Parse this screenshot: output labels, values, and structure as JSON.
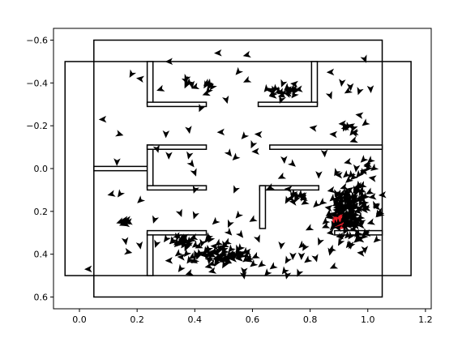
{
  "chart_data": {
    "type": "scatter",
    "title": "",
    "xlabel": "",
    "ylabel": "",
    "xlim": [
      -0.09,
      1.22
    ],
    "ylim": [
      0.655,
      -0.655
    ],
    "y_inverted": true,
    "grid": false,
    "x_ticks": [
      0.0,
      0.2,
      0.4,
      0.6,
      0.8,
      1.0,
      1.2
    ],
    "x_tick_labels": [
      "0.0",
      "0.2",
      "0.4",
      "0.6",
      "0.8",
      "1.0",
      "1.2"
    ],
    "y_ticks": [
      -0.6,
      -0.4,
      -0.2,
      0.0,
      0.2,
      0.4,
      0.6
    ],
    "y_tick_labels": [
      "−0.6",
      "−0.4",
      "−0.2",
      "0.0",
      "0.2",
      "0.4",
      "0.6"
    ],
    "colors": {
      "walls": "#000000",
      "arrows": "#000000",
      "marker": "#e8202a"
    },
    "rectangles": [
      {
        "name": "outer-boundary-tall",
        "x0": 0.05,
        "x1": 1.05,
        "y0": -0.6,
        "y1": 0.6
      },
      {
        "name": "outer-boundary-wide",
        "x0": -0.05,
        "x1": 1.15,
        "y0": -0.5,
        "y1": 0.5
      }
    ],
    "wall_segments": [
      {
        "name": "wall-top-left-vertical",
        "x0": 0.235,
        "x1": 0.255,
        "y0": -0.5,
        "y1": -0.3
      },
      {
        "name": "wall-top-left-horizontal",
        "x0": 0.235,
        "x1": 0.44,
        "y0": -0.31,
        "y1": -0.29
      },
      {
        "name": "wall-top-right-vertical",
        "x0": 0.805,
        "x1": 0.825,
        "y0": -0.5,
        "y1": -0.3
      },
      {
        "name": "wall-top-right-horizontal",
        "x0": 0.62,
        "x1": 0.825,
        "y0": -0.31,
        "y1": -0.29
      },
      {
        "name": "wall-left-stub",
        "x0": 0.05,
        "x1": 0.24,
        "y0": -0.01,
        "y1": 0.01
      },
      {
        "name": "wall-mid-left-vertical",
        "x0": 0.235,
        "x1": 0.255,
        "y0": -0.11,
        "y1": 0.09
      },
      {
        "name": "wall-mid-left-top",
        "x0": 0.235,
        "x1": 0.44,
        "y0": -0.11,
        "y1": -0.09
      },
      {
        "name": "wall-mid-left-bottom",
        "x0": 0.235,
        "x1": 0.44,
        "y0": 0.08,
        "y1": 0.1
      },
      {
        "name": "wall-mid-right-long",
        "x0": 0.66,
        "x1": 1.05,
        "y0": -0.11,
        "y1": -0.09
      },
      {
        "name": "wall-center-horizontal",
        "x0": 0.625,
        "x1": 0.83,
        "y0": 0.08,
        "y1": 0.1
      },
      {
        "name": "wall-center-vertical",
        "x0": 0.625,
        "x1": 0.645,
        "y0": 0.08,
        "y1": 0.28
      },
      {
        "name": "wall-bottom-left-vertical",
        "x0": 0.235,
        "x1": 0.255,
        "y0": 0.3,
        "y1": 0.5
      },
      {
        "name": "wall-bottom-left-horizontal",
        "x0": 0.235,
        "x1": 0.44,
        "y0": 0.29,
        "y1": 0.31
      },
      {
        "name": "wall-bottom-right-horizontal",
        "x0": 0.885,
        "x1": 1.05,
        "y0": 0.29,
        "y1": 0.31
      }
    ],
    "marker": {
      "x": 0.905,
      "y": 0.245,
      "r": 0.028
    },
    "arrows": [
      [
        0.99,
        -0.51,
        1.2
      ],
      [
        0.48,
        -0.54,
        3.1
      ],
      [
        0.58,
        -0.53,
        2.9
      ],
      [
        0.31,
        -0.5,
        3.1
      ],
      [
        0.87,
        -0.45,
        3.1
      ],
      [
        0.18,
        -0.44,
        2.1
      ],
      [
        0.21,
        -0.42,
        3.3
      ],
      [
        0.28,
        -0.37,
        2.8
      ],
      [
        0.37,
        -0.41,
        1.2
      ],
      [
        0.55,
        -0.45,
        2.3
      ],
      [
        0.58,
        -0.41,
        2.7
      ],
      [
        0.72,
        -0.35,
        3.4
      ],
      [
        0.67,
        -0.34,
        3.0
      ],
      [
        0.76,
        -0.37,
        3.0
      ],
      [
        0.46,
        -0.38,
        2.2
      ],
      [
        0.51,
        -0.32,
        1.3
      ],
      [
        0.87,
        -0.34,
        1.2
      ],
      [
        0.91,
        -0.4,
        1.7
      ],
      [
        0.94,
        -0.38,
        1.5
      ],
      [
        0.97,
        -0.36,
        1.9
      ],
      [
        0.93,
        -0.36,
        2.6
      ],
      [
        1.01,
        -0.37,
        1.5
      ],
      [
        0.97,
        -0.25,
        3.3
      ],
      [
        0.94,
        -0.2,
        3.4
      ],
      [
        0.88,
        -0.16,
        3.2
      ],
      [
        0.92,
        -0.19,
        2.9
      ],
      [
        0.99,
        -0.21,
        2.5
      ],
      [
        0.95,
        -0.13,
        2.8
      ],
      [
        0.08,
        -0.23,
        3.1
      ],
      [
        0.14,
        -0.16,
        0.3
      ],
      [
        0.3,
        -0.16,
        1.6
      ],
      [
        0.42,
        -0.28,
        2.0
      ],
      [
        0.38,
        -0.18,
        1.4
      ],
      [
        0.49,
        -0.17,
        3.1
      ],
      [
        0.57,
        -0.15,
        2.3
      ],
      [
        0.62,
        -0.16,
        3.2
      ],
      [
        0.6,
        -0.11,
        2.0
      ],
      [
        0.81,
        -0.19,
        3.3
      ],
      [
        0.27,
        -0.09,
        1.3
      ],
      [
        0.31,
        -0.06,
        1.6
      ],
      [
        0.38,
        -0.06,
        1.8
      ],
      [
        0.39,
        -0.02,
        0.9
      ],
      [
        0.4,
        0.02,
        1.2
      ],
      [
        0.52,
        -0.07,
        0.9
      ],
      [
        0.54,
        -0.05,
        2.4
      ],
      [
        0.61,
        -0.08,
        3.1
      ],
      [
        0.71,
        -0.04,
        1.5
      ],
      [
        0.74,
        -0.02,
        0.7
      ],
      [
        0.85,
        -0.07,
        1.5
      ],
      [
        0.93,
        -0.03,
        2.9
      ],
      [
        0.89,
        0.02,
        2.1
      ],
      [
        0.83,
        0.03,
        1.6
      ],
      [
        0.96,
        0.0,
        1.7
      ],
      [
        0.98,
        0.02,
        2.3
      ],
      [
        1.02,
        0.0,
        2.5
      ],
      [
        0.98,
        0.08,
        2.7
      ],
      [
        0.13,
        -0.03,
        1.6
      ],
      [
        0.11,
        0.12,
        2.9
      ],
      [
        0.14,
        0.12,
        2.2
      ],
      [
        0.21,
        0.15,
        2.4
      ],
      [
        0.4,
        0.1,
        1.9
      ],
      [
        0.54,
        0.1,
        2.0
      ],
      [
        0.7,
        0.04,
        2.7
      ],
      [
        0.66,
        0.09,
        2.7
      ],
      [
        0.72,
        0.15,
        2.1
      ],
      [
        0.78,
        0.16,
        2.6
      ],
      [
        1.03,
        0.18,
        3.1
      ],
      [
        0.26,
        0.24,
        1.9
      ],
      [
        0.35,
        0.21,
        1.2
      ],
      [
        0.4,
        0.22,
        1.9
      ],
      [
        0.52,
        0.26,
        2.0
      ],
      [
        0.55,
        0.22,
        2.3
      ],
      [
        0.47,
        0.25,
        2.4
      ],
      [
        0.6,
        0.24,
        2.6
      ],
      [
        0.56,
        0.31,
        0.9
      ],
      [
        0.62,
        0.33,
        1.2
      ],
      [
        0.7,
        0.36,
        1.7
      ],
      [
        0.77,
        0.36,
        2.4
      ],
      [
        0.74,
        0.41,
        1.6
      ],
      [
        0.87,
        0.39,
        1.8
      ],
      [
        0.94,
        0.36,
        1.5
      ],
      [
        0.99,
        0.38,
        1.5
      ],
      [
        0.16,
        0.34,
        1.4
      ],
      [
        0.17,
        0.39,
        0.2
      ],
      [
        0.21,
        0.36,
        1.4
      ],
      [
        0.3,
        0.33,
        2.2
      ],
      [
        0.34,
        0.32,
        1.8
      ],
      [
        0.37,
        0.37,
        2.0
      ],
      [
        0.38,
        0.34,
        2.3
      ],
      [
        0.31,
        0.43,
        3.1
      ],
      [
        0.38,
        0.43,
        2.2
      ],
      [
        0.41,
        0.41,
        1.9
      ],
      [
        0.45,
        0.43,
        1.7
      ],
      [
        0.5,
        0.38,
        2.0
      ],
      [
        0.56,
        0.4,
        1.7
      ],
      [
        0.35,
        0.47,
        2.2
      ],
      [
        0.38,
        0.49,
        2.8
      ],
      [
        0.46,
        0.48,
        2.9
      ],
      [
        0.57,
        0.48,
        1.7
      ],
      [
        0.63,
        0.45,
        2.5
      ],
      [
        0.65,
        0.49,
        2.3
      ],
      [
        0.67,
        0.46,
        2.5
      ],
      [
        0.71,
        0.48,
        2.2
      ],
      [
        0.72,
        0.43,
        2.1
      ],
      [
        0.79,
        0.43,
        2.5
      ],
      [
        0.88,
        0.46,
        2.7
      ],
      [
        0.03,
        0.47,
        3.1
      ],
      [
        0.57,
        0.5,
        1.4
      ],
      [
        0.72,
        0.5,
        1.8
      ],
      [
        0.76,
        0.49,
        2.0
      ],
      [
        0.77,
        0.41,
        1.6
      ],
      [
        0.82,
        0.42,
        1.3
      ],
      [
        0.15,
        0.26,
        2.8
      ],
      [
        0.16,
        0.25,
        2.9
      ],
      [
        0.17,
        0.25,
        3.0
      ],
      [
        0.155,
        0.24,
        3.0
      ],
      [
        0.165,
        0.24,
        3.0
      ],
      [
        0.15,
        0.25,
        3.1
      ],
      [
        0.14,
        0.25,
        2.8
      ],
      [
        0.16,
        0.26,
        3.0
      ],
      [
        0.37,
        -0.42,
        2.0
      ],
      [
        0.38,
        -0.4,
        2.3
      ],
      [
        0.39,
        -0.39,
        1.4
      ],
      [
        0.4,
        -0.38,
        2.8
      ],
      [
        0.37,
        -0.39,
        2.0
      ],
      [
        0.94,
        0.36,
        2.1
      ],
      [
        0.82,
        0.17,
        2.4
      ],
      [
        0.78,
        0.37,
        2.1
      ],
      [
        0.87,
        0.3,
        3.0
      ],
      [
        0.52,
        0.3,
        0.8
      ]
    ],
    "clusters": [
      {
        "name": "cluster-top-center",
        "cx": 0.71,
        "cy": -0.36,
        "sx": 0.03,
        "sy": 0.02,
        "n": 22
      },
      {
        "name": "cluster-right-dense",
        "cx": 0.935,
        "cy": 0.2,
        "sx": 0.04,
        "sy": 0.07,
        "n": 180
      },
      {
        "name": "cluster-bottom-center",
        "cx": 0.47,
        "cy": 0.4,
        "sx": 0.06,
        "sy": 0.03,
        "n": 80
      },
      {
        "name": "cluster-bottom-left",
        "cx": 0.36,
        "cy": 0.34,
        "sx": 0.025,
        "sy": 0.015,
        "n": 22
      },
      {
        "name": "cluster-center-wall",
        "cx": 0.745,
        "cy": 0.13,
        "sx": 0.02,
        "sy": 0.012,
        "n": 14
      },
      {
        "name": "cluster-right-mid",
        "cx": 0.93,
        "cy": -0.18,
        "sx": 0.02,
        "sy": 0.02,
        "n": 8
      },
      {
        "name": "cluster-top-left",
        "cx": 0.44,
        "cy": -0.39,
        "sx": 0.01,
        "sy": 0.02,
        "n": 6
      },
      {
        "name": "cluster-right-sub",
        "cx": 0.99,
        "cy": -0.01,
        "sx": 0.01,
        "sy": 0.01,
        "n": 6
      }
    ]
  }
}
